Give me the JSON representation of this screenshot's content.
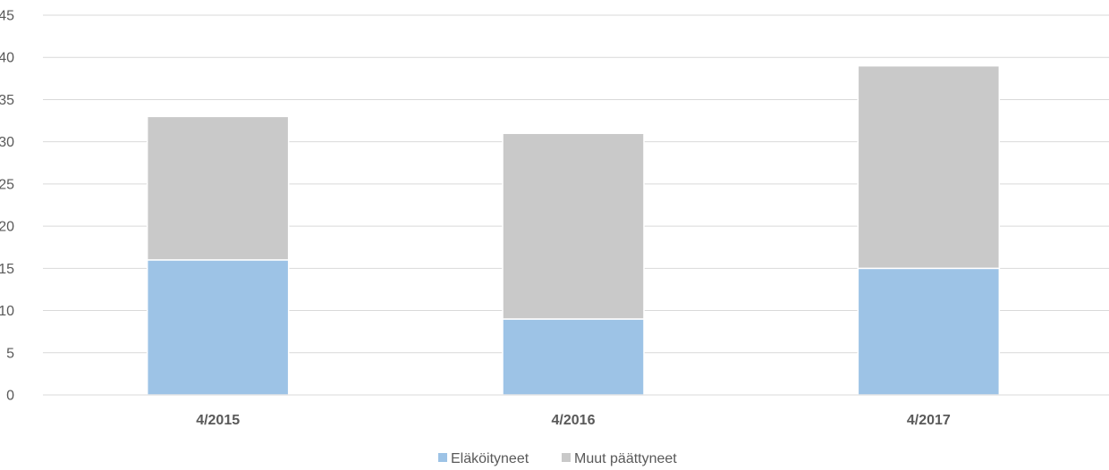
{
  "chart_data": {
    "type": "bar",
    "stacked": true,
    "categories": [
      "4/2015",
      "4/2016",
      "4/2017"
    ],
    "series": [
      {
        "name": "Eläköityneet",
        "values": [
          16,
          9,
          15
        ],
        "color": "#9dc3e6"
      },
      {
        "name": "Muut päättyneet",
        "values": [
          17,
          22,
          24
        ],
        "color": "#c9c9c9"
      }
    ],
    "ylim": [
      0,
      45
    ],
    "yticks": [
      0,
      5,
      10,
      15,
      20,
      25,
      30,
      35,
      40,
      45
    ],
    "grid": true,
    "legend_position": "bottom"
  }
}
